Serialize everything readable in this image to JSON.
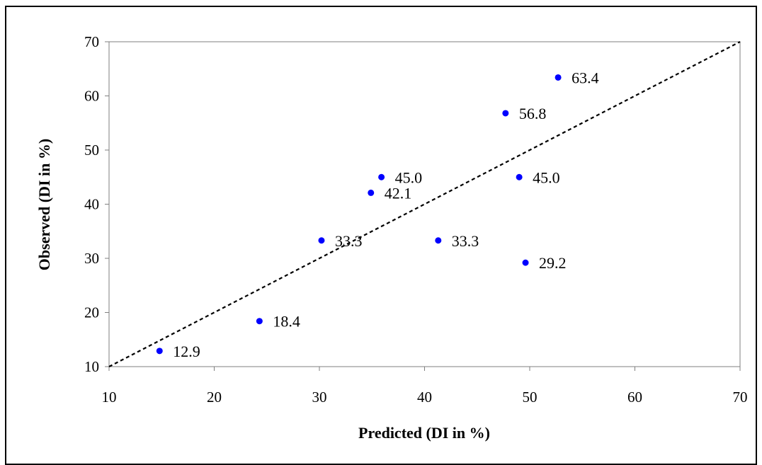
{
  "chart_data": {
    "type": "scatter",
    "xlabel": "Predicted (DI in %)",
    "ylabel": "Observed (DI in %)",
    "xlim": [
      10,
      70
    ],
    "ylim": [
      10,
      70
    ],
    "xticks": [
      "10",
      "20",
      "30",
      "40",
      "50",
      "60",
      "70"
    ],
    "yticks": [
      "10",
      "20",
      "30",
      "40",
      "50",
      "60",
      "70"
    ],
    "grid": false,
    "legend": "none",
    "reference_line": {
      "style": "dashed",
      "from": [
        10,
        10
      ],
      "to": [
        70,
        70
      ],
      "color": "#000000"
    },
    "series": [
      {
        "color": "#0000ff",
        "points": [
          {
            "x": 14.8,
            "y": 12.9,
            "label": "12.9"
          },
          {
            "x": 24.3,
            "y": 18.4,
            "label": "18.4"
          },
          {
            "x": 30.2,
            "y": 33.3,
            "label": "33.3"
          },
          {
            "x": 34.9,
            "y": 42.1,
            "label": "42.1"
          },
          {
            "x": 35.9,
            "y": 45.0,
            "label": "45.0"
          },
          {
            "x": 41.3,
            "y": 33.3,
            "label": "33.3"
          },
          {
            "x": 47.7,
            "y": 56.8,
            "label": "56.8"
          },
          {
            "x": 49.0,
            "y": 45.0,
            "label": "45.0"
          },
          {
            "x": 49.6,
            "y": 29.2,
            "label": "29.2"
          },
          {
            "x": 52.7,
            "y": 63.4,
            "label": "63.4"
          }
        ]
      }
    ]
  }
}
